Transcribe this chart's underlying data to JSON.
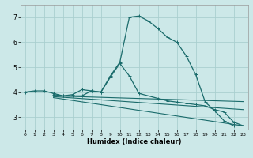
{
  "xlabel": "Humidex (Indice chaleur)",
  "background_color": "#cce8e8",
  "grid_color": "#aacfcf",
  "line_color": "#1a6b6b",
  "xlim": [
    -0.5,
    23.5
  ],
  "ylim": [
    2.5,
    7.5
  ],
  "yticks": [
    3,
    4,
    5,
    6,
    7
  ],
  "xticks": [
    0,
    1,
    2,
    3,
    4,
    5,
    6,
    7,
    8,
    9,
    10,
    11,
    12,
    13,
    14,
    15,
    16,
    17,
    18,
    19,
    20,
    21,
    22,
    23
  ],
  "curve1_x": [
    0,
    1,
    2,
    3,
    4,
    5,
    6,
    7,
    8,
    9,
    10,
    11,
    12,
    13,
    14,
    15,
    16,
    17,
    18,
    19,
    20,
    21,
    22,
    23
  ],
  "curve1_y": [
    4.0,
    4.05,
    4.05,
    3.95,
    3.85,
    3.9,
    4.1,
    4.05,
    4.0,
    4.65,
    5.2,
    7.0,
    7.05,
    6.85,
    6.55,
    6.2,
    6.0,
    5.45,
    4.7,
    3.6,
    3.25,
    2.85,
    2.65,
    2.65
  ],
  "curve2_x": [
    3,
    4,
    5,
    6,
    7,
    8,
    9,
    10,
    11,
    12,
    13,
    14,
    15,
    16,
    17,
    18,
    19,
    20,
    21,
    22,
    23
  ],
  "curve2_y": [
    3.9,
    3.85,
    3.85,
    3.85,
    4.05,
    4.0,
    4.6,
    5.15,
    4.65,
    3.95,
    3.85,
    3.75,
    3.65,
    3.6,
    3.55,
    3.5,
    3.45,
    3.3,
    3.2,
    2.8,
    2.65
  ],
  "line1_x": [
    3,
    23
  ],
  "line1_y": [
    3.85,
    3.62
  ],
  "line2_x": [
    3,
    23
  ],
  "line2_y": [
    3.82,
    3.3
  ],
  "line3_x": [
    3,
    23
  ],
  "line3_y": [
    3.78,
    2.65
  ]
}
